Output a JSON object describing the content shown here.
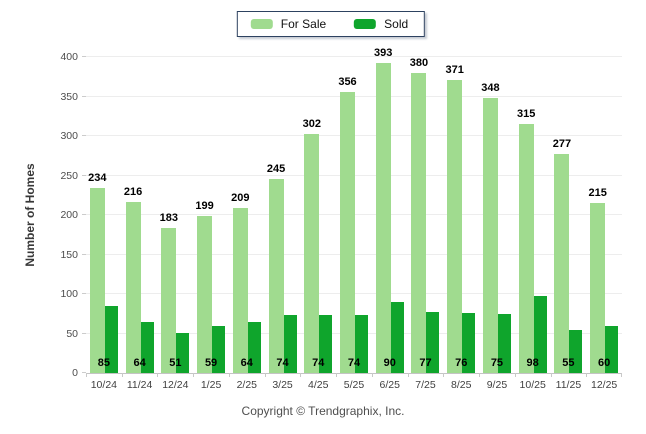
{
  "legend": {
    "for_sale": "For Sale",
    "sold": "Sold"
  },
  "colors": {
    "for_sale": "#A0DB8F",
    "sold": "#0FA52C",
    "legend_border": "#2d4260",
    "gridline": "#ededed",
    "axis_line": "#c4c4c4",
    "value_label": "#000000"
  },
  "footer": "Copyright © Trendgraphix, Inc.",
  "chart_data": {
    "type": "bar",
    "title": "",
    "categories": [
      "10/24",
      "11/24",
      "12/24",
      "1/25",
      "2/25",
      "3/25",
      "4/25",
      "5/25",
      "6/25",
      "7/25",
      "8/25",
      "9/25",
      "10/25",
      "11/25",
      "12/25"
    ],
    "series": [
      {
        "name": "For Sale",
        "color": "#A0DB8F",
        "values": [
          234,
          216,
          183,
          199,
          209,
          245,
          302,
          356,
          393,
          380,
          371,
          348,
          315,
          277,
          215
        ]
      },
      {
        "name": "Sold",
        "color": "#0FA52C",
        "values": [
          85,
          64,
          51,
          59,
          64,
          74,
          74,
          74,
          90,
          77,
          76,
          75,
          98,
          55,
          60
        ]
      }
    ],
    "xlabel": "",
    "ylabel": "Number of Homes",
    "ylim": [
      0,
      400
    ],
    "ytick_step": 50,
    "grid": true,
    "legend_position": "top-center"
  }
}
